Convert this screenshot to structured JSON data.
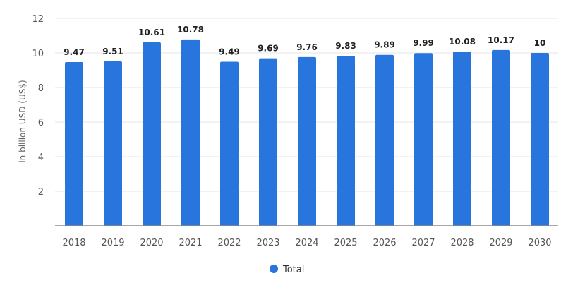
{
  "chart_data": {
    "type": "bar",
    "title": "",
    "xlabel": "",
    "ylabel": "in billion USD (US$)",
    "ylim": [
      0,
      12
    ],
    "yticks": [
      2,
      4,
      6,
      8,
      10,
      12
    ],
    "grid": true,
    "legend_position": "bottom-center",
    "categories": [
      "2018",
      "2019",
      "2020",
      "2021",
      "2022",
      "2023",
      "2024",
      "2025",
      "2026",
      "2027",
      "2028",
      "2029",
      "2030"
    ],
    "series": [
      {
        "name": "Total",
        "color": "#2876dd",
        "values": [
          9.47,
          9.51,
          10.61,
          10.78,
          9.49,
          9.69,
          9.76,
          9.83,
          9.89,
          9.99,
          10.08,
          10.17,
          10
        ],
        "labels": [
          "9.47",
          "9.51",
          "10.61",
          "10.78",
          "9.49",
          "9.69",
          "9.76",
          "9.83",
          "9.89",
          "9.99",
          "10.08",
          "10.17",
          "10"
        ]
      }
    ]
  }
}
